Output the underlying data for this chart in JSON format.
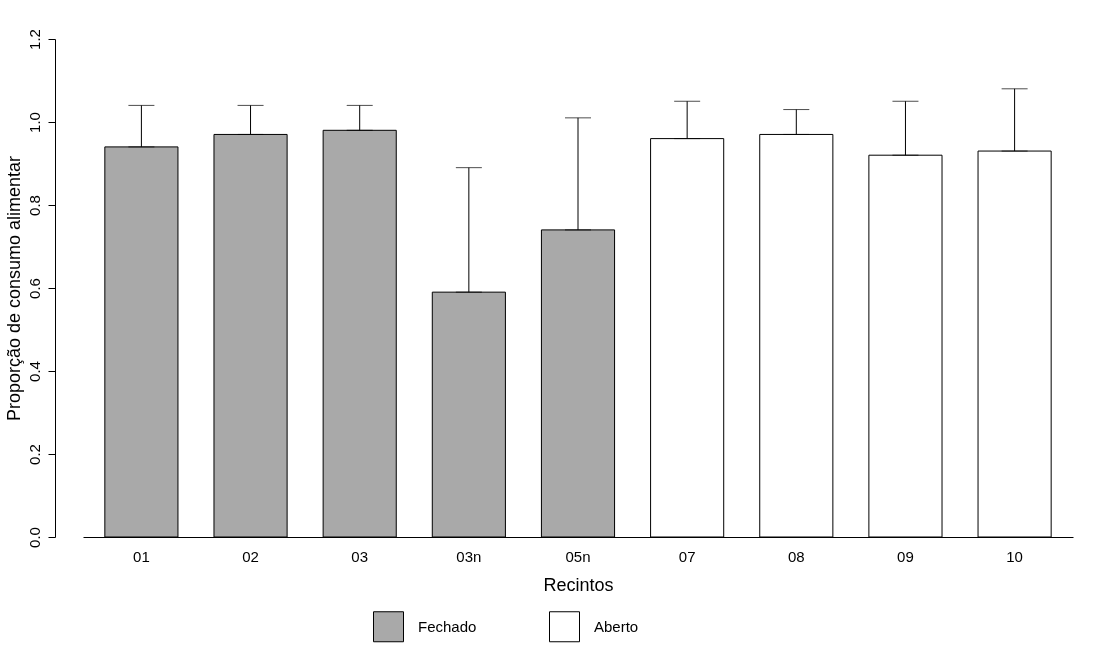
{
  "chart_data": {
    "type": "bar",
    "xlabel": "Recintos",
    "ylabel": "Proporção de consumo alimentar",
    "categories": [
      "01",
      "02",
      "03",
      "03n",
      "05n",
      "07",
      "08",
      "09",
      "10"
    ],
    "series": [
      {
        "name": "Fechado",
        "color": "#a9a9a9",
        "values": [
          0.94,
          0.97,
          0.98,
          0.59,
          0.74,
          null,
          null,
          null,
          null
        ],
        "errors": [
          [
            0.94,
            1.04
          ],
          [
            0.97,
            1.04
          ],
          [
            0.98,
            1.04
          ],
          [
            0.59,
            0.89
          ],
          [
            0.74,
            1.01
          ],
          null,
          null,
          null,
          null
        ]
      },
      {
        "name": "Aberto",
        "color": "#ffffff",
        "values": [
          null,
          null,
          null,
          null,
          null,
          0.96,
          0.97,
          0.92,
          0.93
        ],
        "errors": [
          null,
          null,
          null,
          null,
          null,
          [
            0.96,
            1.05
          ],
          [
            0.97,
            1.03
          ],
          [
            0.92,
            1.05
          ],
          [
            0.93,
            1.08
          ]
        ]
      }
    ],
    "ylim": [
      0,
      1.2
    ],
    "yticks": [
      {
        "value": 0,
        "label": "0.0"
      },
      0.2,
      0.4,
      0.6,
      0.8,
      {
        "value": 1,
        "label": "1.0"
      },
      1.2
    ],
    "legend": "bottom",
    "grid": false
  }
}
